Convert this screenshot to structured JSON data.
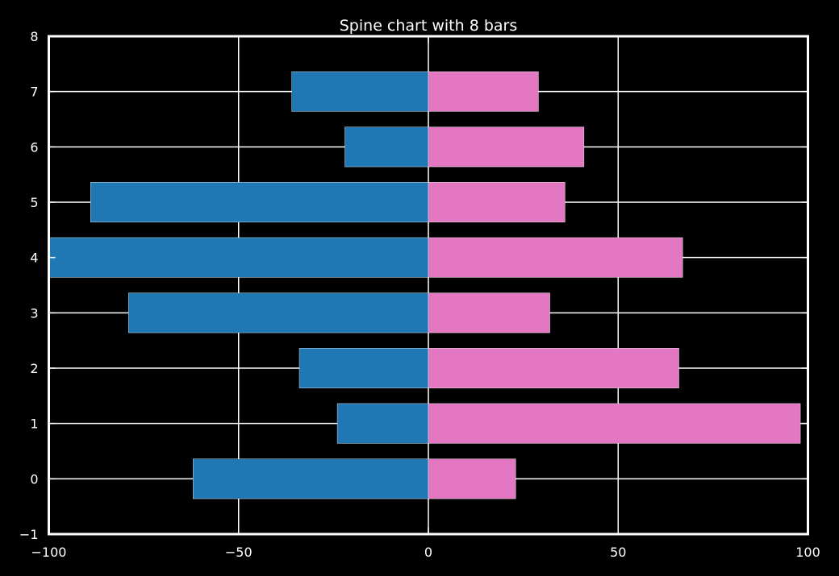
{
  "chart_data": {
    "type": "bar",
    "orientation": "horizontal",
    "title": "Spine chart with 8 bars",
    "xlabel": "",
    "ylabel": "",
    "xlim": [
      -100,
      100
    ],
    "ylim": [
      -1,
      8
    ],
    "x_ticks": [
      -100,
      -50,
      0,
      50,
      100
    ],
    "x_tick_labels": [
      "−100",
      "−50",
      "0",
      "50",
      "100"
    ],
    "y_ticks": [
      -1,
      0,
      1,
      2,
      3,
      4,
      5,
      6,
      7,
      8
    ],
    "y_tick_labels": [
      "−1",
      "0",
      "1",
      "2",
      "3",
      "4",
      "5",
      "6",
      "7",
      "8"
    ],
    "categories": [
      0,
      1,
      2,
      3,
      4,
      5,
      6,
      7
    ],
    "series": [
      {
        "values": [
          -62,
          -24,
          -34,
          -79,
          -100,
          -89,
          -22,
          -36
        ],
        "color": "#1f77b4"
      },
      {
        "values": [
          23,
          98,
          66,
          32,
          67,
          36,
          41,
          29
        ],
        "color": "#e377c2"
      }
    ],
    "bar_height": 0.72,
    "grid": true,
    "background": "#000000",
    "foreground": "#ffffff"
  }
}
